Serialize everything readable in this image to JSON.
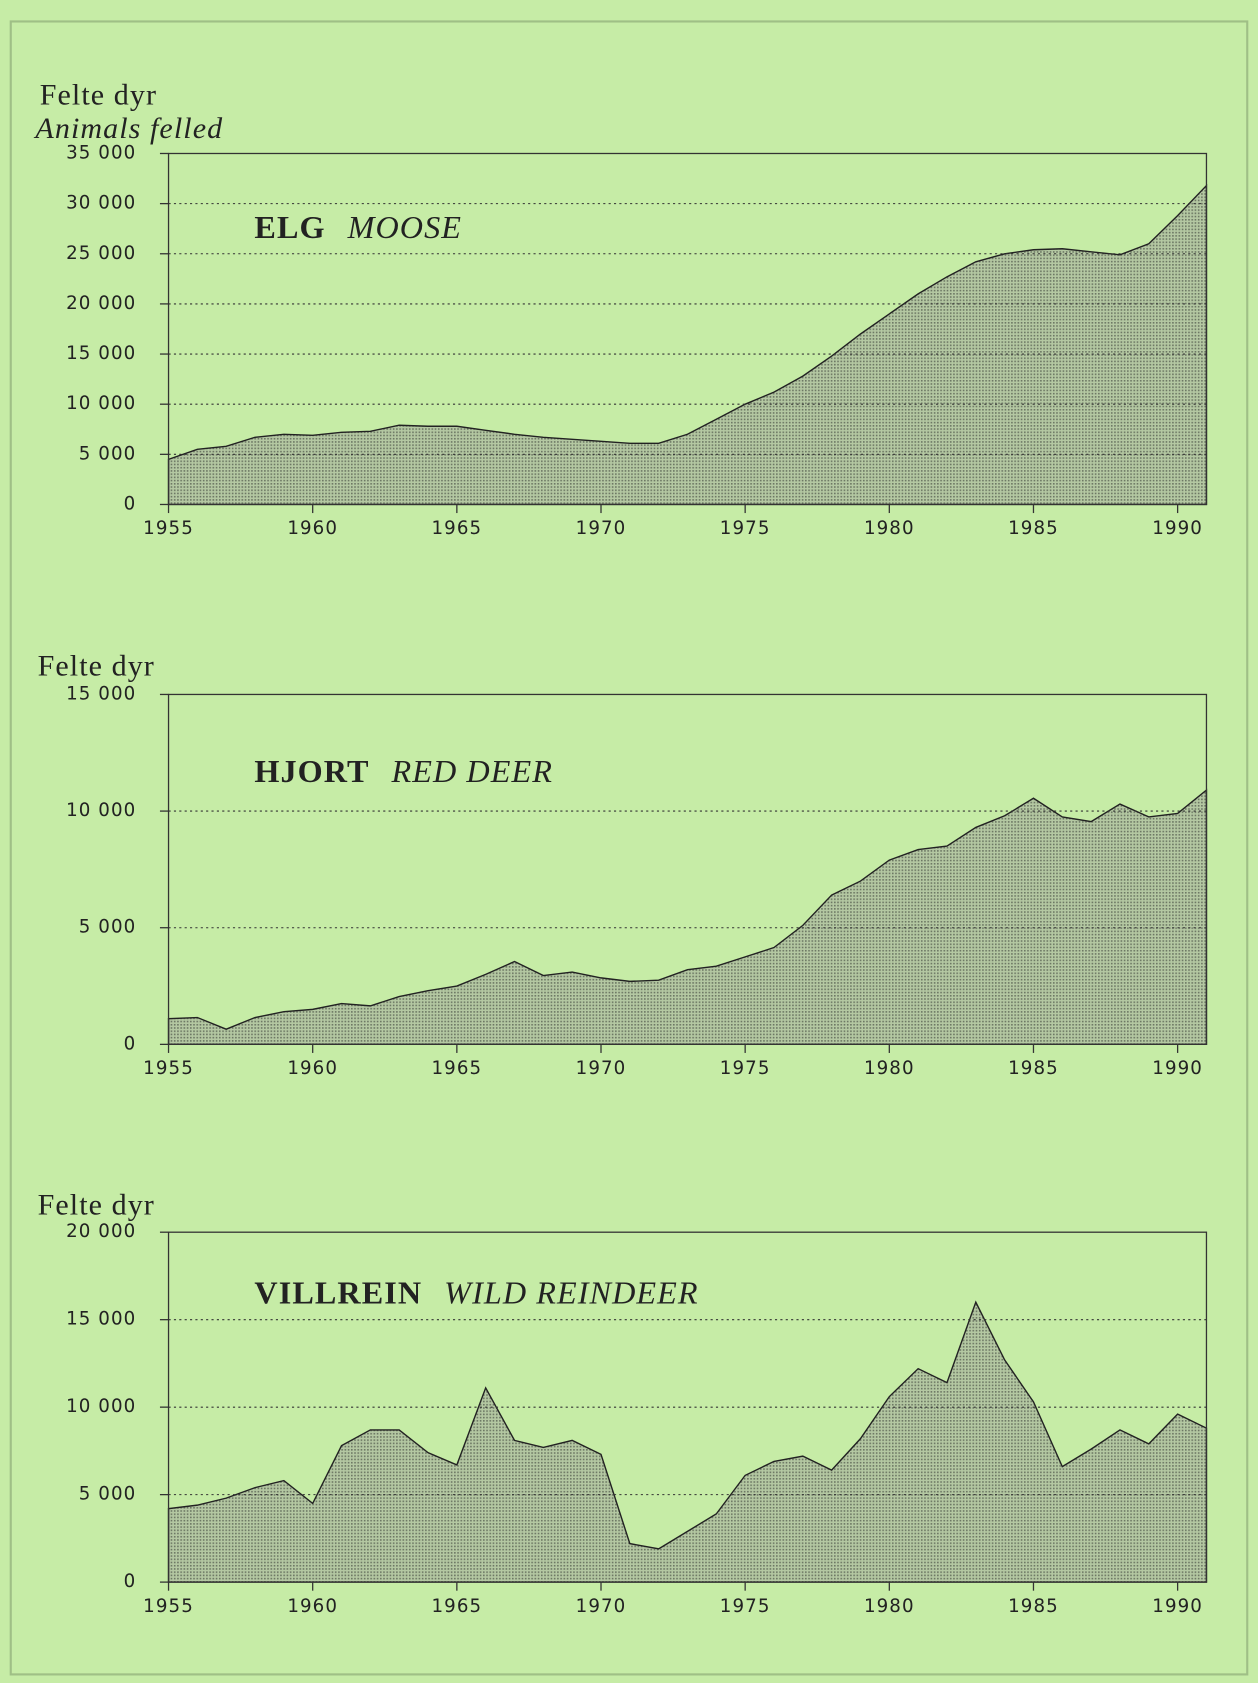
{
  "chart_data": [
    {
      "type": "area",
      "ylabel": "Felte dyr",
      "ylabel_en": "Animals felled",
      "title": "ELG",
      "title_en": "MOOSE",
      "color": "#9aa88c",
      "x": [
        1955,
        1956,
        1957,
        1958,
        1959,
        1960,
        1961,
        1962,
        1963,
        1964,
        1965,
        1966,
        1967,
        1968,
        1969,
        1970,
        1971,
        1972,
        1973,
        1974,
        1975,
        1976,
        1977,
        1978,
        1979,
        1980,
        1981,
        1982,
        1983,
        1984,
        1985,
        1986,
        1987,
        1988,
        1989,
        1990,
        1991
      ],
      "values": [
        4500,
        5500,
        5800,
        6700,
        7000,
        6900,
        7200,
        7300,
        7900,
        7800,
        7800,
        7400,
        7000,
        6700,
        6500,
        6300,
        6100,
        6100,
        7000,
        8500,
        10000,
        11200,
        12800,
        14800,
        17000,
        19000,
        21000,
        22700,
        24200,
        25000,
        25400,
        25500,
        25200,
        24900,
        26000,
        28800,
        31800
      ],
      "xlim": [
        1955,
        1991
      ],
      "xticks": [
        1955,
        1960,
        1965,
        1970,
        1975,
        1980,
        1985,
        1990
      ],
      "ylim": [
        0,
        35000
      ],
      "yticks": [
        0,
        {
          "value": 5000,
          "label": "5 000"
        },
        {
          "value": 10000,
          "label": "10 000"
        },
        {
          "value": 15000,
          "label": "15 000"
        },
        {
          "value": 20000,
          "label": "20 000"
        },
        {
          "value": 25000,
          "label": "25 000"
        },
        {
          "value": 30000,
          "label": "30 000"
        },
        {
          "value": 35000,
          "label": "35 000"
        }
      ],
      "grid": true
    },
    {
      "type": "area",
      "ylabel": "Felte dyr",
      "title": "HJORT",
      "title_en": "RED DEER",
      "color": "#9aa88c",
      "x": [
        1955,
        1956,
        1957,
        1958,
        1959,
        1960,
        1961,
        1962,
        1963,
        1964,
        1965,
        1966,
        1967,
        1968,
        1969,
        1970,
        1971,
        1972,
        1973,
        1974,
        1975,
        1976,
        1977,
        1978,
        1979,
        1980,
        1981,
        1982,
        1983,
        1984,
        1985,
        1986,
        1987,
        1988,
        1989,
        1990,
        1991
      ],
      "values": [
        1100,
        1150,
        650,
        1150,
        1400,
        1500,
        1750,
        1650,
        2050,
        2300,
        2500,
        3000,
        3550,
        2950,
        3100,
        2850,
        2700,
        2750,
        3200,
        3350,
        3750,
        4150,
        5100,
        6400,
        7000,
        7900,
        8350,
        8500,
        9300,
        9800,
        10550,
        9750,
        9550,
        10300,
        9750,
        9900,
        10900
      ],
      "xlim": [
        1955,
        1991
      ],
      "xticks": [
        1955,
        1960,
        1965,
        1970,
        1975,
        1980,
        1985,
        1990
      ],
      "ylim": [
        0,
        15000
      ],
      "yticks": [
        0,
        {
          "value": 5000,
          "label": "5 000"
        },
        {
          "value": 10000,
          "label": "10 000"
        },
        {
          "value": 15000,
          "label": "15 000"
        }
      ],
      "grid": true
    },
    {
      "type": "area",
      "ylabel": "Felte dyr",
      "title": "VILLREIN",
      "title_en": "WILD REINDEER",
      "color": "#9aa88c",
      "x": [
        1955,
        1956,
        1957,
        1958,
        1959,
        1960,
        1961,
        1962,
        1963,
        1964,
        1965,
        1966,
        1967,
        1968,
        1969,
        1970,
        1971,
        1972,
        1973,
        1974,
        1975,
        1976,
        1977,
        1978,
        1979,
        1980,
        1981,
        1982,
        1983,
        1984,
        1985,
        1986,
        1987,
        1988,
        1989,
        1990,
        1991
      ],
      "values": [
        4200,
        4400,
        4800,
        5400,
        5800,
        4500,
        7800,
        8700,
        8700,
        7400,
        6700,
        11100,
        8100,
        7700,
        8100,
        7300,
        2200,
        1900,
        2900,
        3900,
        6100,
        6900,
        7200,
        6400,
        8200,
        10600,
        12200,
        11400,
        16000,
        12700,
        10300,
        6600,
        7600,
        8700,
        7900,
        9600,
        8800
      ],
      "xlim": [
        1955,
        1991
      ],
      "xticks": [
        1955,
        1960,
        1965,
        1970,
        1975,
        1980,
        1985,
        1990
      ],
      "ylim": [
        0,
        20000
      ],
      "yticks": [
        0,
        {
          "value": 5000,
          "label": "5 000"
        },
        {
          "value": 10000,
          "label": "10 000"
        },
        {
          "value": 15000,
          "label": "15 000"
        },
        {
          "value": 20000,
          "label": "20 000"
        }
      ],
      "grid": true
    }
  ]
}
